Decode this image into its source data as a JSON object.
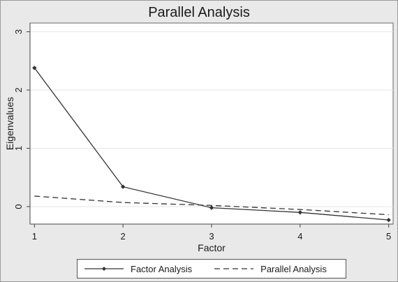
{
  "chart_data": {
    "type": "line",
    "title": "Parallel Analysis",
    "xlabel": "Factor",
    "ylabel": "Eigenvalues",
    "x": [
      1,
      2,
      3,
      4,
      5
    ],
    "xticks": [
      1,
      2,
      3,
      4,
      5
    ],
    "yticks": [
      0,
      1,
      2,
      3
    ],
    "xlim": [
      0.95,
      5.05
    ],
    "ylim": [
      -0.3,
      3.15
    ],
    "grid": true,
    "legend_position": "bottom",
    "series": [
      {
        "name": "Factor Analysis",
        "values": [
          2.38,
          0.34,
          -0.02,
          -0.1,
          -0.23
        ],
        "style": "solid",
        "marker": "diamond",
        "color": "#333333"
      },
      {
        "name": "Parallel Analysis",
        "values": [
          0.18,
          0.07,
          0.02,
          -0.05,
          -0.14
        ],
        "style": "dashed",
        "marker": "none",
        "color": "#333333"
      }
    ]
  },
  "colors": {
    "figure_bg": "#e9e9e9",
    "plot_bg": "#ffffff",
    "grid": "#e6e6e6",
    "axis": "#444444"
  }
}
